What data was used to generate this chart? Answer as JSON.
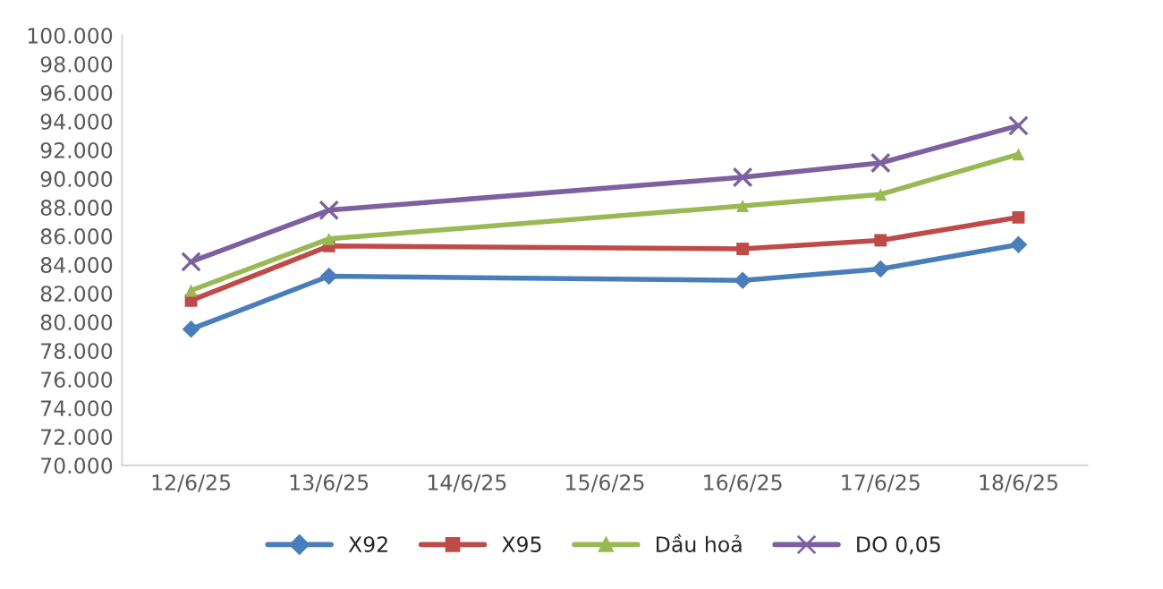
{
  "chart_data": {
    "type": "line",
    "categories": [
      "12/6/25",
      "13/6/25",
      "14/6/25",
      "15/6/25",
      "16/6/25",
      "17/6/25",
      "18/6/25"
    ],
    "series": [
      {
        "name": "X92",
        "color": "#4a7ebb",
        "marker": "diamond",
        "values": [
          79500,
          83200,
          null,
          null,
          82900,
          83700,
          85400
        ]
      },
      {
        "name": "X95",
        "color": "#be4b48",
        "marker": "square",
        "values": [
          81500,
          85300,
          null,
          null,
          85100,
          85700,
          87300
        ]
      },
      {
        "name": "Dầu hoả",
        "color": "#98b954",
        "marker": "triangle",
        "values": [
          82200,
          85800,
          null,
          null,
          88100,
          88900,
          91700
        ]
      },
      {
        "name": "DO 0,05",
        "color": "#7d60a0",
        "marker": "cross",
        "values": [
          84200,
          87800,
          null,
          null,
          90100,
          91100,
          93700
        ]
      }
    ],
    "ylim": [
      70000,
      100000
    ],
    "yticks": [
      {
        "value": 70000,
        "label": "70.000"
      },
      {
        "value": 72000,
        "label": "72.000"
      },
      {
        "value": 74000,
        "label": "74.000"
      },
      {
        "value": 76000,
        "label": "76.000"
      },
      {
        "value": 78000,
        "label": "78.000"
      },
      {
        "value": 80000,
        "label": "80.000"
      },
      {
        "value": 82000,
        "label": "82.000"
      },
      {
        "value": 84000,
        "label": "84.000"
      },
      {
        "value": 86000,
        "label": "86.000"
      },
      {
        "value": 88000,
        "label": "88.000"
      },
      {
        "value": 90000,
        "label": "90.000"
      },
      {
        "value": 92000,
        "label": "92.000"
      },
      {
        "value": 94000,
        "label": "94.000"
      },
      {
        "value": 96000,
        "label": "96.000"
      },
      {
        "value": 98000,
        "label": "98.000"
      },
      {
        "value": 100000,
        "label": "100.000"
      }
    ],
    "grid": false,
    "legend": "bottom",
    "line_style": "solid"
  }
}
